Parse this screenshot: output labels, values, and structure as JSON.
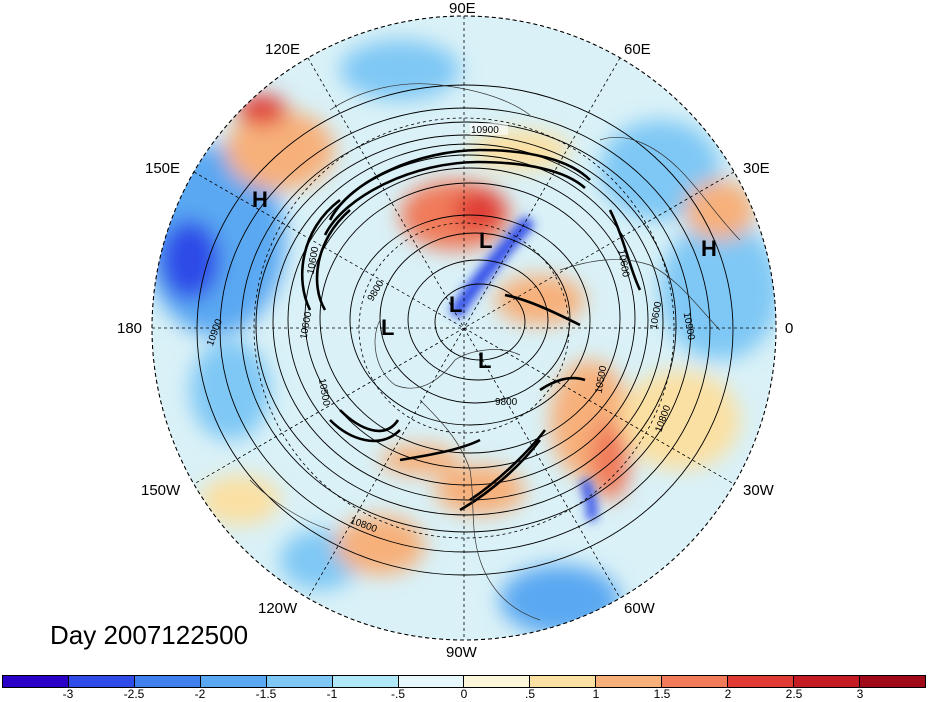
{
  "title": "Day 2007122500",
  "longitude_labels": {
    "n90e": "90E",
    "n120e": "120E",
    "n60e": "60E",
    "n150e": "150E",
    "n30e": "30E",
    "n180": "180",
    "n0": "0",
    "n150w": "150W",
    "n30w": "30W",
    "n120w": "120W",
    "n60w": "60W",
    "n90w": "90W"
  },
  "pressure_centers": {
    "H1": "H",
    "H2": "H",
    "L1": "L",
    "L2": "L",
    "L3": "L",
    "L4": "L"
  },
  "contour_labels": {
    "c1": "10900",
    "c2": "10900",
    "c3": "10900",
    "c4": "10800",
    "c5": "10800",
    "c6": "10600",
    "c7": "10600",
    "c8": "10600",
    "c9": "10500",
    "c10": "10500",
    "c11": "9800",
    "c12": "9800",
    "c13": "10600"
  },
  "colorbar": {
    "ticks": [
      "-3",
      "-2.5",
      "-2",
      "-1.5",
      "-1",
      "-.5",
      "0",
      ".5",
      "1",
      "1.5",
      "2",
      "2.5",
      "3"
    ],
    "colors": [
      "#2a00c8",
      "#2f4ce8",
      "#3f7fee",
      "#5aa8f2",
      "#7fc8f5",
      "#b0e8f8",
      "#e6f8fb",
      "#fbf6d8",
      "#fbe0a3",
      "#f7b07a",
      "#f07a5a",
      "#e03a34",
      "#c41a22",
      "#a00a18"
    ]
  }
}
